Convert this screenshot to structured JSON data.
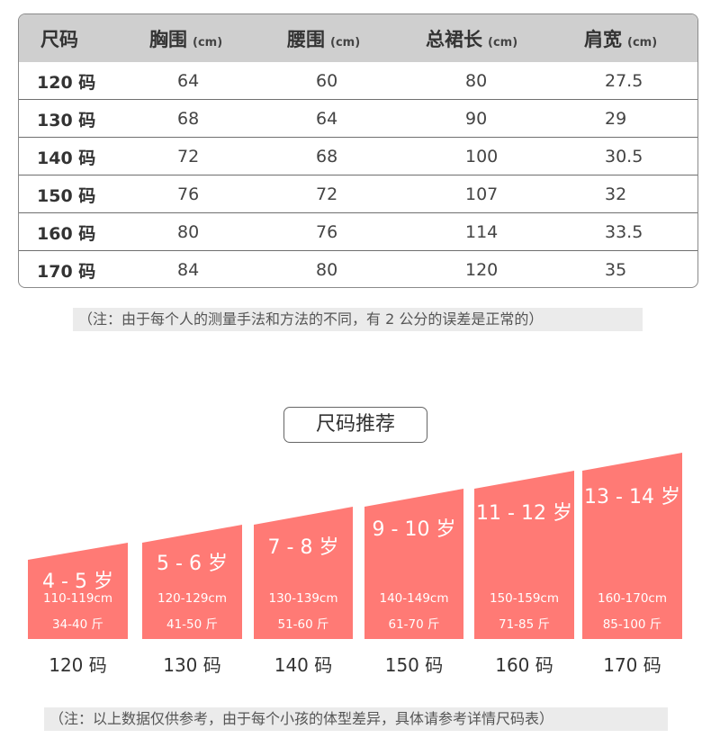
{
  "table": {
    "headers": [
      {
        "label": "尺码",
        "unit": ""
      },
      {
        "label": "胸围",
        "unit": "(cm)"
      },
      {
        "label": "腰围",
        "unit": "(cm)"
      },
      {
        "label": "总裙长",
        "unit": "(cm)"
      },
      {
        "label": "肩宽",
        "unit": "(cm)"
      }
    ],
    "rows": [
      [
        "120 码",
        "64",
        "60",
        "80",
        "27.5"
      ],
      [
        "130 码",
        "68",
        "64",
        "90",
        "29"
      ],
      [
        "140 码",
        "72",
        "68",
        "100",
        "30.5"
      ],
      [
        "150 码",
        "76",
        "72",
        "107",
        "32"
      ],
      [
        "160 码",
        "80",
        "76",
        "114",
        "33.5"
      ],
      [
        "170 码",
        "84",
        "80",
        "120",
        "35"
      ]
    ]
  },
  "note_measure": "（注：由于每个人的测量手法和方法的不同，有 2 公分的误差是正常的）",
  "recommend": {
    "title": "尺码推荐",
    "accent_color": "#ff7a75",
    "items": [
      {
        "age": "4 - 5 岁",
        "height": "110-119cm",
        "weight": "34-40 斤",
        "size": "120 码"
      },
      {
        "age": "5 - 6 岁",
        "height": "120-129cm",
        "weight": "41-50 斤",
        "size": "130 码"
      },
      {
        "age": "7 - 8 岁",
        "height": "130-139cm",
        "weight": "51-60 斤",
        "size": "140 码"
      },
      {
        "age": "9 - 10 岁",
        "height": "140-149cm",
        "weight": "61-70 斤",
        "size": "150 码"
      },
      {
        "age": "11 - 12 岁",
        "height": "150-159cm",
        "weight": "71-85 斤",
        "size": "160 码"
      },
      {
        "age": "13 - 14 岁",
        "height": "160-170cm",
        "weight": "85-100 斤",
        "size": "170 码"
      }
    ]
  },
  "note_reference": "（注：以上数据仅供参考，由于每个小孩的体型差异，具体请参考详情尺码表）"
}
